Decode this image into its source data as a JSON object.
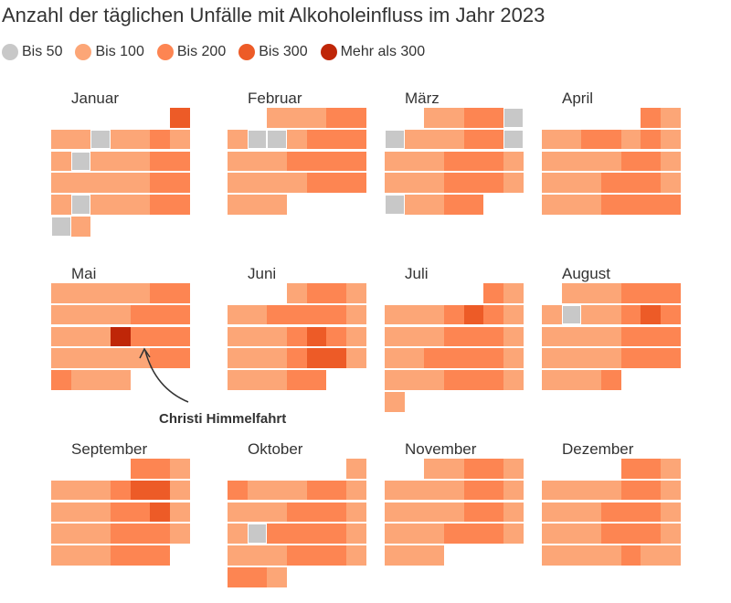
{
  "chart_data": {
    "type": "heatmap",
    "title": "Anzahl der täglichen Unfälle mit Alkoholeinfluss im Jahr 2023",
    "year": 2023,
    "legend_placement": "top-left",
    "legend": [
      {
        "key": 1,
        "label": "Bis 50",
        "color": "#c8c8c8"
      },
      {
        "key": 2,
        "label": "Bis 100",
        "color": "#fca677"
      },
      {
        "key": 3,
        "label": "Bis 200",
        "color": "#fd8552"
      },
      {
        "key": 4,
        "label": "Bis 300",
        "color": "#ed5b27"
      },
      {
        "key": 5,
        "label": "Mehr als 300",
        "color": "#bf2608"
      }
    ],
    "months": [
      {
        "name": "Januar",
        "days": [
          4,
          2,
          2,
          1,
          2,
          2,
          3,
          2,
          2,
          1,
          2,
          2,
          2,
          3,
          3,
          2,
          2,
          2,
          2,
          2,
          3,
          3,
          2,
          1,
          2,
          2,
          2,
          3,
          3,
          1,
          2
        ]
      },
      {
        "name": "Februar",
        "days": [
          2,
          2,
          2,
          3,
          3,
          2,
          1,
          1,
          2,
          3,
          3,
          3,
          2,
          2,
          2,
          3,
          3,
          3,
          3,
          2,
          2,
          2,
          2,
          3,
          3,
          3,
          2,
          2,
          2
        ]
      },
      {
        "name": "März",
        "days": [
          2,
          2,
          3,
          3,
          1,
          1,
          2,
          2,
          2,
          3,
          3,
          1,
          2,
          2,
          2,
          3,
          3,
          3,
          2,
          2,
          2,
          2,
          3,
          3,
          3,
          2,
          1,
          2,
          2,
          3,
          3
        ]
      },
      {
        "name": "April",
        "days": [
          3,
          2,
          2,
          2,
          3,
          3,
          2,
          3,
          2,
          2,
          2,
          2,
          2,
          3,
          3,
          2,
          2,
          2,
          2,
          3,
          3,
          3,
          2,
          2,
          2,
          2,
          3,
          3,
          3,
          3
        ]
      },
      {
        "name": "Mai",
        "days": [
          2,
          2,
          2,
          2,
          2,
          3,
          3,
          2,
          2,
          2,
          2,
          3,
          3,
          3,
          2,
          2,
          2,
          5,
          3,
          3,
          3,
          2,
          2,
          2,
          2,
          2,
          3,
          3,
          3,
          2,
          2,
          2
        ]
      },
      {
        "name": "Juni",
        "days": [
          2,
          3,
          3,
          2,
          2,
          2,
          3,
          3,
          3,
          3,
          2,
          2,
          2,
          2,
          3,
          4,
          3,
          2,
          2,
          2,
          2,
          3,
          4,
          4,
          2,
          2,
          2,
          2,
          3,
          3
        ]
      },
      {
        "name": "Juli",
        "days": [
          3,
          2,
          2,
          2,
          2,
          3,
          4,
          3,
          2,
          2,
          2,
          2,
          3,
          3,
          3,
          2,
          2,
          2,
          3,
          3,
          3,
          3,
          2,
          2,
          2,
          2,
          3,
          3,
          3,
          2,
          2
        ]
      },
      {
        "name": "August",
        "days": [
          2,
          2,
          2,
          3,
          3,
          3,
          2,
          1,
          2,
          2,
          3,
          4,
          3,
          2,
          2,
          2,
          2,
          3,
          3,
          3,
          2,
          2,
          2,
          2,
          3,
          3,
          3,
          2,
          2,
          2,
          3
        ]
      },
      {
        "name": "September",
        "days": [
          3,
          3,
          2,
          2,
          2,
          2,
          3,
          4,
          4,
          2,
          2,
          2,
          2,
          3,
          3,
          4,
          2,
          2,
          2,
          2,
          3,
          3,
          3,
          2,
          2,
          2,
          2,
          3,
          3,
          3
        ]
      },
      {
        "name": "Oktober",
        "days": [
          2,
          3,
          2,
          2,
          2,
          3,
          3,
          2,
          2,
          2,
          2,
          3,
          3,
          3,
          2,
          2,
          1,
          3,
          3,
          3,
          3,
          2,
          2,
          2,
          2,
          3,
          3,
          3,
          2,
          3,
          3,
          2
        ]
      },
      {
        "name": "November",
        "days": [
          2,
          2,
          3,
          3,
          2,
          2,
          2,
          2,
          2,
          3,
          3,
          2,
          2,
          2,
          2,
          2,
          3,
          3,
          2,
          2,
          2,
          2,
          3,
          3,
          3,
          2,
          2,
          2,
          2
        ]
      },
      {
        "name": "Dezember",
        "days": [
          3,
          3,
          2,
          2,
          2,
          2,
          2,
          3,
          3,
          2,
          2,
          2,
          2,
          3,
          3,
          3,
          2,
          2,
          2,
          2,
          3,
          3,
          3,
          2,
          2,
          2,
          2,
          2,
          3,
          2,
          2
        ]
      }
    ],
    "annotation": {
      "label": "Christi Himmelfahrt",
      "month": "Mai",
      "day": 18
    }
  }
}
